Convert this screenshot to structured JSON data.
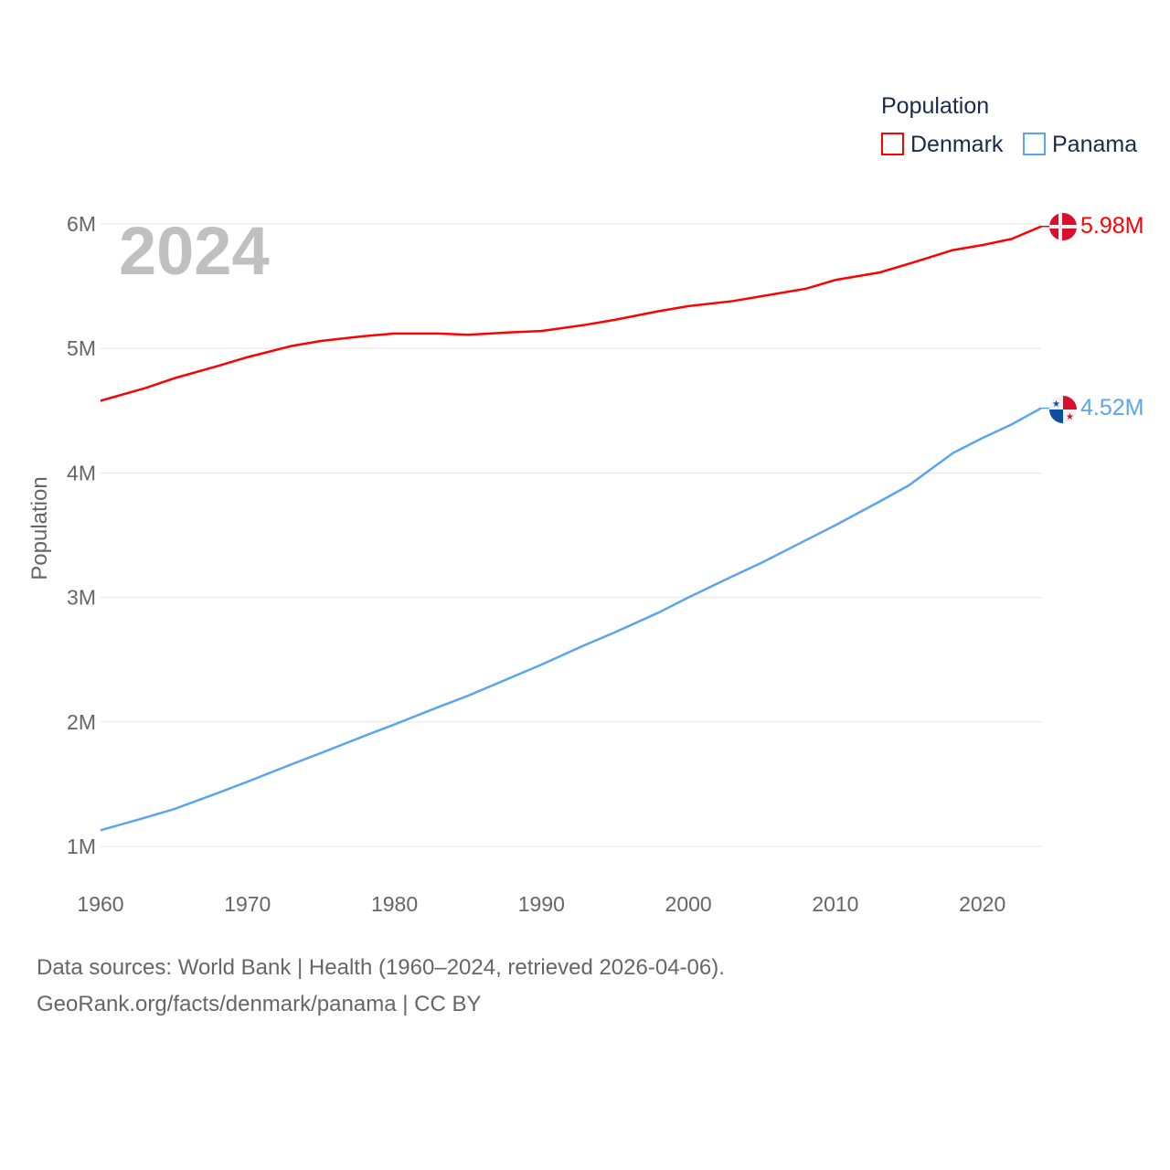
{
  "chart_data": {
    "type": "line",
    "title": "Population",
    "ylabel": "Population",
    "xlabel": "",
    "year_label": "2024",
    "xlim": [
      1960,
      2024
    ],
    "ylim": [
      1000000,
      6000000
    ],
    "x_ticks": [
      1960,
      1970,
      1980,
      1990,
      2000,
      2010,
      2020
    ],
    "x_tick_labels": [
      "1960",
      "1970",
      "1980",
      "1990",
      "2000",
      "2010",
      "2020"
    ],
    "y_ticks": [
      1000000,
      2000000,
      3000000,
      4000000,
      5000000,
      6000000
    ],
    "y_tick_labels": [
      "1M",
      "2M",
      "3M",
      "4M",
      "5M",
      "6M"
    ],
    "grid": true,
    "legend_title": "Population",
    "legend_position": "top-right",
    "x": [
      1960,
      1963,
      1965,
      1968,
      1970,
      1973,
      1975,
      1978,
      1980,
      1983,
      1985,
      1988,
      1990,
      1993,
      1995,
      1998,
      2000,
      2003,
      2005,
      2008,
      2010,
      2013,
      2015,
      2018,
      2020,
      2022,
      2024
    ],
    "series": [
      {
        "name": "Denmark",
        "color": "#ff0000",
        "end_label": "5.98M",
        "flag": "denmark",
        "values": [
          4.58,
          4.68,
          4.76,
          4.86,
          4.93,
          5.02,
          5.06,
          5.1,
          5.12,
          5.12,
          5.11,
          5.13,
          5.14,
          5.19,
          5.23,
          5.3,
          5.34,
          5.38,
          5.42,
          5.48,
          5.55,
          5.61,
          5.68,
          5.79,
          5.83,
          5.88,
          5.98
        ]
      },
      {
        "name": "Panama",
        "color": "#5ba4ef",
        "end_label": "4.52M",
        "flag": "panama",
        "values": [
          1.13,
          1.23,
          1.3,
          1.43,
          1.52,
          1.66,
          1.75,
          1.89,
          1.98,
          2.12,
          2.21,
          2.36,
          2.46,
          2.62,
          2.72,
          2.88,
          3.0,
          3.17,
          3.28,
          3.46,
          3.58,
          3.77,
          3.9,
          4.16,
          4.28,
          4.39,
          4.52
        ]
      }
    ]
  },
  "footer": {
    "line1": "Data sources: World Bank | Health (1960–2024, retrieved 2026-04-06).",
    "line2": "GeoRank.org/facts/denmark/panama | CC BY"
  }
}
